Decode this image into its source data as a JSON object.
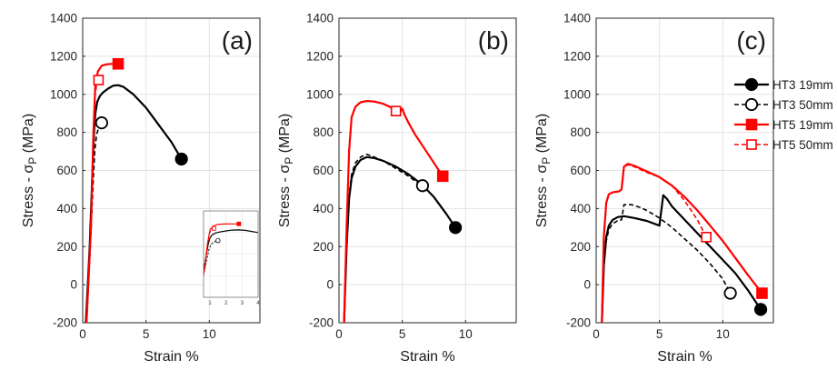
{
  "colors": {
    "black": "#000000",
    "red": "#ff0000",
    "grid": "#e3e3e3",
    "axis": "#262626"
  },
  "chart_data": [
    {
      "type": "line",
      "panel_label": "(a)",
      "xlabel": "Strain %",
      "ylabel": "Stress - σ_P (MPa)",
      "xlim": [
        0,
        14
      ],
      "ylim": [
        -200,
        1400
      ],
      "xticks": [
        "0",
        "5",
        "10"
      ],
      "yticks": [
        "-200",
        "0",
        "200",
        "400",
        "600",
        "800",
        "1000",
        "1200",
        "1400"
      ],
      "grid": true,
      "series": [
        {
          "name": "HT3 19mm",
          "color": "#000000",
          "dash": false,
          "marker": "filled-circle",
          "x": [
            0.25,
            0.55,
            0.75,
            0.9,
            1.0,
            1.15,
            1.35,
            1.6,
            2.0,
            2.4,
            2.8,
            3.2,
            4.0,
            5.0,
            6.0,
            7.0,
            7.8
          ],
          "y": [
            -200,
            200,
            550,
            800,
            900,
            960,
            990,
            1010,
            1030,
            1045,
            1048,
            1040,
            1000,
            930,
            840,
            750,
            660
          ]
        },
        {
          "name": "HT3 50mm",
          "color": "#000000",
          "dash": true,
          "marker": "open-circle",
          "x": [
            0.3,
            0.6,
            0.8,
            0.95,
            1.1,
            1.3,
            1.5
          ],
          "y": [
            -200,
            200,
            500,
            700,
            790,
            830,
            850
          ]
        },
        {
          "name": "HT5 19mm",
          "color": "#ff0000",
          "dash": false,
          "marker": "filled-square",
          "x": [
            0.3,
            0.65,
            0.85,
            1.0,
            1.2,
            1.5,
            1.9,
            2.3,
            2.8
          ],
          "y": [
            -200,
            300,
            800,
            1050,
            1120,
            1150,
            1158,
            1160,
            1160
          ]
        },
        {
          "name": "HT5 50mm",
          "color": "#ff0000",
          "dash": true,
          "marker": "open-square",
          "x": [
            0.3,
            0.65,
            0.85,
            0.95,
            1.1,
            1.25
          ],
          "y": [
            -200,
            300,
            800,
            980,
            1050,
            1075
          ]
        }
      ],
      "inset": {
        "xticks": [
          "1",
          "2",
          "3",
          "4"
        ],
        "xlim": [
          0.6,
          4.0
        ],
        "ylim": [
          -200,
          1400
        ]
      }
    },
    {
      "type": "line",
      "panel_label": "(b)",
      "xlabel": "Strain %",
      "ylabel": "Stress - σ_P (MPa)",
      "xlim": [
        0,
        14
      ],
      "ylim": [
        -200,
        1400
      ],
      "xticks": [
        "0",
        "5",
        "10"
      ],
      "yticks": [
        "-200",
        "0",
        "200",
        "400",
        "600",
        "800",
        "1000",
        "1200",
        "1400"
      ],
      "grid": true,
      "series": [
        {
          "name": "HT3 19mm",
          "color": "#000000",
          "dash": false,
          "marker": "filled-circle",
          "x": [
            0.4,
            0.6,
            0.8,
            1.0,
            1.3,
            1.7,
            2.2,
            2.8,
            3.5,
            4.5,
            5.5,
            6.5,
            7.5,
            8.5,
            9.2
          ],
          "y": [
            -200,
            200,
            450,
            560,
            620,
            655,
            670,
            665,
            650,
            620,
            580,
            530,
            460,
            370,
            300
          ]
        },
        {
          "name": "HT3 50mm",
          "color": "#000000",
          "dash": true,
          "marker": "open-circle",
          "x": [
            0.4,
            0.6,
            0.8,
            1.0,
            1.3,
            1.7,
            2.2,
            2.8,
            3.5,
            4.5,
            5.5,
            6.0,
            6.6
          ],
          "y": [
            -200,
            210,
            470,
            580,
            640,
            670,
            685,
            670,
            650,
            610,
            570,
            545,
            520
          ]
        },
        {
          "name": "HT5 19mm",
          "color": "#ff0000",
          "dash": false,
          "marker": "filled-square",
          "x": [
            0.4,
            0.6,
            0.8,
            1.0,
            1.3,
            1.7,
            2.2,
            2.8,
            3.5,
            4.0,
            4.5,
            4.8,
            5.0,
            5.2,
            5.5,
            6.0,
            7.0,
            8.2
          ],
          "y": [
            -200,
            300,
            700,
            880,
            935,
            958,
            965,
            962,
            950,
            935,
            915,
            905,
            925,
            890,
            850,
            790,
            690,
            570
          ]
        },
        {
          "name": "HT5 50mm",
          "color": "#ff0000",
          "dash": true,
          "marker": "open-square",
          "x": [
            0.4,
            0.6,
            0.8,
            1.0,
            1.3,
            1.7,
            2.2,
            2.8,
            3.5,
            4.0,
            4.5
          ],
          "y": [
            -200,
            300,
            700,
            880,
            935,
            958,
            965,
            962,
            950,
            935,
            912
          ]
        }
      ]
    },
    {
      "type": "line",
      "panel_label": "(c)",
      "xlabel": "Strain %",
      "ylabel": "Stress - σ_P (MPa)",
      "xlim": [
        0,
        14
      ],
      "ylim": [
        -200,
        1400
      ],
      "xticks": [
        "0",
        "5",
        "10"
      ],
      "yticks": [
        "-200",
        "0",
        "200",
        "400",
        "600",
        "800",
        "1000",
        "1200",
        "1400"
      ],
      "grid": true,
      "legend": {
        "location": "top-right"
      },
      "series": [
        {
          "name": "HT3 19mm",
          "color": "#000000",
          "dash": false,
          "marker": "filled-circle",
          "x": [
            0.45,
            0.6,
            0.8,
            1.0,
            1.3,
            1.7,
            2.2,
            3.0,
            4.0,
            5.0,
            5.3,
            5.6,
            6.0,
            7.0,
            8.0,
            9.0,
            10.0,
            11.0,
            12.0,
            13.0
          ],
          "y": [
            -200,
            100,
            250,
            310,
            340,
            355,
            360,
            350,
            335,
            310,
            470,
            450,
            410,
            340,
            270,
            200,
            130,
            60,
            -30,
            -130
          ]
        },
        {
          "name": "HT3 50mm",
          "color": "#000000",
          "dash": true,
          "marker": "open-circle",
          "x": [
            0.45,
            0.6,
            0.8,
            1.0,
            1.3,
            1.8,
            2.0,
            2.2,
            2.8,
            3.5,
            4.0,
            5.0,
            6.0,
            7.0,
            8.0,
            9.0,
            10.0,
            10.6
          ],
          "y": [
            -200,
            90,
            230,
            290,
            320,
            340,
            340,
            420,
            420,
            405,
            390,
            350,
            300,
            240,
            180,
            110,
            30,
            -45
          ]
        },
        {
          "name": "HT5 19mm",
          "color": "#ff0000",
          "dash": false,
          "marker": "filled-square",
          "x": [
            0.45,
            0.6,
            0.8,
            1.0,
            1.3,
            1.8,
            2.0,
            2.2,
            2.5,
            3.0,
            4.0,
            5.0,
            6.0,
            7.0,
            8.0,
            9.0,
            10.0,
            11.0,
            12.0,
            13.1
          ],
          "y": [
            -200,
            250,
            430,
            475,
            485,
            490,
            500,
            620,
            635,
            625,
            595,
            565,
            520,
            460,
            390,
            310,
            230,
            140,
            50,
            -45
          ]
        },
        {
          "name": "HT5 50mm",
          "color": "#ff0000",
          "dash": true,
          "marker": "open-square",
          "x": [
            0.45,
            0.6,
            0.8,
            1.0,
            1.3,
            1.8,
            2.0,
            2.2,
            2.5,
            3.0,
            4.0,
            5.0,
            6.0,
            7.0,
            8.0,
            8.7
          ],
          "y": [
            -200,
            250,
            430,
            475,
            485,
            490,
            500,
            615,
            630,
            620,
            590,
            565,
            520,
            440,
            340,
            250
          ]
        }
      ]
    }
  ]
}
